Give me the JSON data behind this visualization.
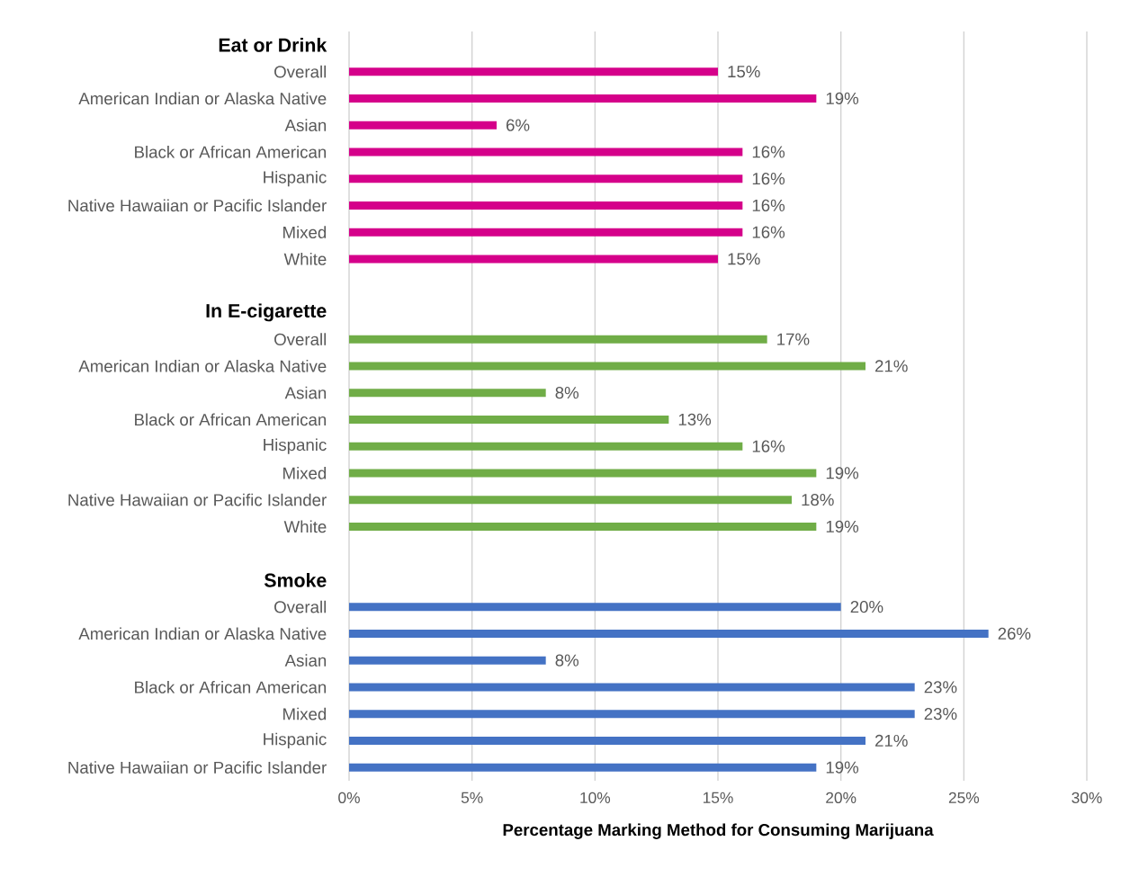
{
  "chart_data": {
    "type": "bar",
    "orientation": "horizontal",
    "xlabel": "Percentage Marking Method for Consuming Marijuana",
    "categories": [
      "Eat or Drink",
      "Overall",
      "American Indian or Alaska Native",
      "Asian",
      "Black or African American",
      "Hispanic",
      "Native Hawaiian or Pacific Islander",
      "Mixed",
      "White",
      null,
      "In E-cigarette",
      "Overall",
      "American Indian or Alaska Native",
      "Asian",
      "Black or African American",
      "Hispanic",
      "Mixed",
      "Native Hawaiian or Pacific Islander",
      "White",
      null,
      "Smoke",
      "Overall",
      "American Indian or Alaska Native",
      "Asian",
      "Black or African American",
      "Mixed",
      "Hispanic",
      "Native Hawaiian or Pacific Islander"
    ],
    "values": [
      null,
      15,
      19,
      6,
      16,
      16,
      16,
      16,
      15,
      null,
      null,
      17,
      21,
      8,
      13,
      16,
      19,
      18,
      19,
      null,
      null,
      20,
      26,
      8,
      23,
      23,
      21,
      19
    ],
    "value_labels": [
      null,
      "15%",
      "19%",
      "6%",
      "16%",
      "16%",
      "16%",
      "16%",
      "15%",
      null,
      null,
      "17%",
      "21%",
      "8%",
      "13%",
      "16%",
      "19%",
      "18%",
      "19%",
      null,
      null,
      "20%",
      "26%",
      "8%",
      "23%",
      "23%",
      "21%",
      "19%"
    ],
    "colors": [
      null,
      "#d5008a",
      "#d5008a",
      "#d5008a",
      "#d5008a",
      "#d5008a",
      "#d5008a",
      "#d5008a",
      "#d5008a",
      null,
      null,
      "#70ad47",
      "#70ad47",
      "#70ad47",
      "#70ad47",
      "#70ad47",
      "#70ad47",
      "#70ad47",
      "#70ad47",
      null,
      null,
      "#4472c4",
      "#4472c4",
      "#4472c4",
      "#4472c4",
      "#4472c4",
      "#4472c4",
      "#4472c4"
    ],
    "xlim": [
      0,
      30
    ],
    "xticks": [
      {
        "value": 0,
        "label": "0%"
      },
      {
        "value": 5,
        "label": "5%"
      },
      {
        "value": 10,
        "label": "10%"
      },
      {
        "value": 15,
        "label": "15%"
      },
      {
        "value": 20,
        "label": "20%"
      },
      {
        "value": 25,
        "label": "25%"
      },
      {
        "value": 30,
        "label": "30%"
      }
    ],
    "grid": "x"
  }
}
